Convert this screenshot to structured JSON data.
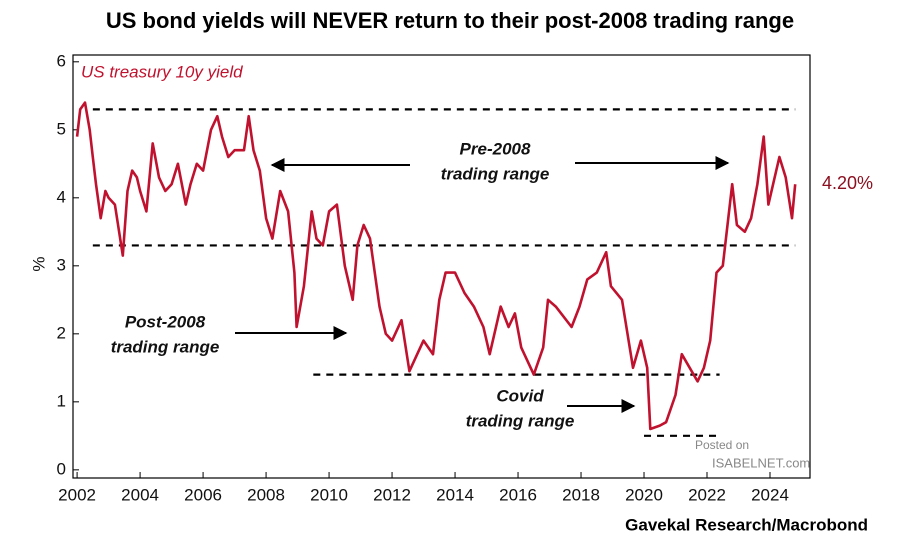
{
  "chart_data": {
    "type": "line",
    "title": "US bond yields will NEVER return to their post-2008 trading range",
    "ylabel": "%",
    "source": "Gavekal Research/Macrobond",
    "watermark": [
      "Posted on",
      "ISABELNET.com"
    ],
    "x": [
      2002.0,
      2002.1,
      2002.25,
      2002.4,
      2002.5,
      2002.6,
      2002.75,
      2002.9,
      2003.0,
      2003.2,
      2003.45,
      2003.6,
      2003.75,
      2003.9,
      2004.0,
      2004.2,
      2004.4,
      2004.6,
      2004.8,
      2005.0,
      2005.2,
      2005.45,
      2005.6,
      2005.8,
      2006.0,
      2006.25,
      2006.45,
      2006.6,
      2006.8,
      2007.0,
      2007.3,
      2007.45,
      2007.6,
      2007.8,
      2008.0,
      2008.2,
      2008.45,
      2008.7,
      2008.9,
      2008.97,
      2009.2,
      2009.45,
      2009.6,
      2009.8,
      2010.0,
      2010.25,
      2010.5,
      2010.75,
      2010.9,
      2011.1,
      2011.3,
      2011.6,
      2011.8,
      2012.0,
      2012.3,
      2012.55,
      2012.8,
      2013.0,
      2013.3,
      2013.5,
      2013.7,
      2014.0,
      2014.3,
      2014.6,
      2014.9,
      2015.1,
      2015.45,
      2015.7,
      2015.9,
      2016.1,
      2016.5,
      2016.8,
      2016.95,
      2017.2,
      2017.7,
      2017.95,
      2018.2,
      2018.5,
      2018.8,
      2018.95,
      2019.3,
      2019.65,
      2019.9,
      2020.1,
      2020.2,
      2020.5,
      2020.7,
      2021.0,
      2021.2,
      2021.45,
      2021.7,
      2021.9,
      2022.1,
      2022.3,
      2022.5,
      2022.8,
      2022.95,
      2023.2,
      2023.4,
      2023.6,
      2023.8,
      2023.95,
      2024.1,
      2024.3,
      2024.5,
      2024.7,
      2024.8
    ],
    "series": [
      {
        "name": "US treasury 10y yield",
        "color": "#c0122e",
        "values": [
          4.9,
          5.3,
          5.4,
          5.0,
          4.6,
          4.2,
          3.7,
          4.1,
          4.0,
          3.9,
          3.15,
          4.1,
          4.4,
          4.3,
          4.1,
          3.8,
          4.8,
          4.3,
          4.1,
          4.2,
          4.5,
          3.9,
          4.2,
          4.5,
          4.4,
          5.0,
          5.2,
          4.9,
          4.6,
          4.7,
          4.7,
          5.2,
          4.7,
          4.4,
          3.7,
          3.4,
          4.1,
          3.8,
          2.9,
          2.1,
          2.7,
          3.8,
          3.4,
          3.3,
          3.8,
          3.9,
          3.0,
          2.5,
          3.3,
          3.6,
          3.4,
          2.4,
          2.0,
          1.9,
          2.2,
          1.45,
          1.7,
          1.9,
          1.7,
          2.5,
          2.9,
          2.9,
          2.6,
          2.4,
          2.1,
          1.7,
          2.4,
          2.1,
          2.3,
          1.8,
          1.4,
          1.8,
          2.5,
          2.4,
          2.1,
          2.4,
          2.8,
          2.9,
          3.2,
          2.7,
          2.5,
          1.5,
          1.9,
          1.5,
          0.6,
          0.65,
          0.7,
          1.1,
          1.7,
          1.5,
          1.3,
          1.5,
          1.9,
          2.9,
          3.0,
          4.2,
          3.6,
          3.5,
          3.7,
          4.2,
          4.9,
          3.9,
          4.2,
          4.6,
          4.3,
          3.7,
          4.2
        ]
      }
    ],
    "last_label": {
      "value": 4.2,
      "label": "4.20%",
      "color": "#8b1020"
    },
    "xlim": [
      2001.87,
      2025.27
    ],
    "ylim": [
      -0.12,
      6.1
    ],
    "xticks": [
      2002,
      2004,
      2006,
      2008,
      2010,
      2012,
      2014,
      2016,
      2018,
      2020,
      2022,
      2024
    ],
    "yticks": [
      0,
      1,
      2,
      3,
      4,
      5,
      6
    ],
    "reference_lines": [
      {
        "y": 5.3,
        "x": [
          2002.5,
          2024.8
        ]
      },
      {
        "y": 3.3,
        "x": [
          2002.5,
          2024.8
        ]
      },
      {
        "y": 1.4,
        "x": [
          2009.5,
          2022.4
        ]
      },
      {
        "y": 0.5,
        "x": [
          2020.0,
          2022.4
        ]
      }
    ],
    "annotations": [
      [
        "Pre-2008",
        "trading range"
      ],
      [
        "Post-2008",
        "trading range"
      ],
      [
        "Covid",
        "trading range"
      ]
    ]
  }
}
